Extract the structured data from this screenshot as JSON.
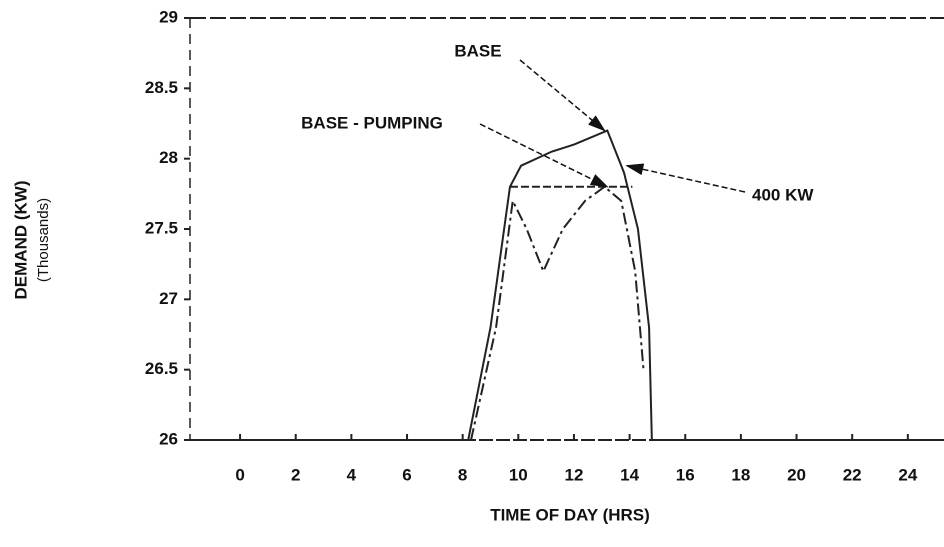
{
  "chart_data": {
    "type": "line",
    "x_label": "TIME OF DAY (HRS)",
    "y_label": "DEMAND (KW)",
    "y_sublabel": "(Thousands)",
    "xlim": [
      -1.8,
      25.3
    ],
    "xticks": [
      0,
      2,
      4,
      6,
      8,
      10,
      12,
      14,
      16,
      18,
      20,
      22,
      24
    ],
    "ylim": [
      26,
      29
    ],
    "yticks": [
      26,
      26.5,
      27,
      27.5,
      28,
      28.5,
      29
    ],
    "series": [
      {
        "name": "BASE",
        "color": "#222222",
        "x": [
          -1.8,
          8.2,
          9,
          9.7,
          10.1,
          11.2,
          12,
          13.2,
          13.8,
          14.3,
          14.7,
          14.8,
          25.3
        ],
        "values": [
          26,
          26,
          26.8,
          27.8,
          27.95,
          28.05,
          28.1,
          28.2,
          27.9,
          27.5,
          26.8,
          26,
          26
        ]
      },
      {
        "name": "BASE - PUMPING",
        "color": "#222222",
        "x": [
          8.3,
          9.2,
          9.8,
          10.3,
          10.9,
          11.6,
          12.4,
          13.1,
          13.7,
          14.2,
          14.5
        ],
        "values": [
          26,
          26.8,
          27.7,
          27.5,
          27.2,
          27.5,
          27.7,
          27.8,
          27.7,
          27.2,
          26.5
        ]
      },
      {
        "name": "400 KW",
        "color": "#222222",
        "x": [
          9.7,
          14.1
        ],
        "values": [
          27.8,
          27.8
        ]
      }
    ]
  }
}
